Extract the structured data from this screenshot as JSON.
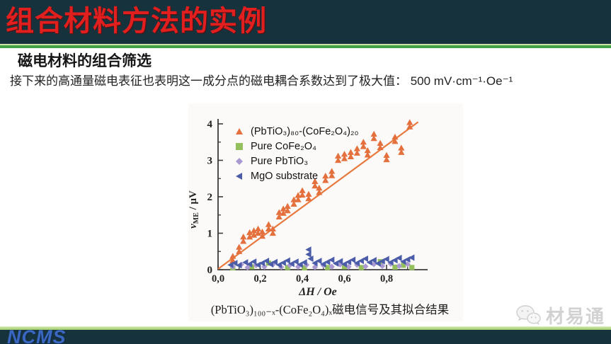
{
  "header": {
    "title": "组合材料方法的实例"
  },
  "subtitle": "磁电材料的组合筛选",
  "body_text": "接下来的高通量磁电表征也表明这一成分点的磁电耦合系数达到了极大值： 500 mV·cm⁻¹·Oe⁻¹",
  "caption": "(PbTiO₃)₁₀₀₋ₓ-(CoFe₂O₄)ₓ磁电信号及其拟合结果",
  "watermark": {
    "icon": "wechat-bubbles-icon",
    "text": "材易通"
  },
  "footer_logo": "NCMS",
  "colors": {
    "title_bar_bg": "#16333d",
    "title_text": "#e11f1f",
    "accent_green": "#42a047",
    "accent_light_green": "#b9dc8e",
    "footer_bar_bg": "#16333d",
    "ncms_blue": "#3a67c2",
    "watermark_gray": "#d2d2d2"
  },
  "chart_data": {
    "type": "scatter",
    "xlabel": "ΔH / Oe",
    "ylabel": {
      "base": "v",
      "sub": "ME",
      "rest": " / μV"
    },
    "xlim": [
      0,
      0.95
    ],
    "ylim": [
      0,
      4
    ],
    "grid": false,
    "legend_position": "top-left",
    "x_ticks": [
      {
        "v": 0.0,
        "label": "0,0"
      },
      {
        "v": 0.2,
        "label": "0,2"
      },
      {
        "v": 0.4,
        "label": "0,4"
      },
      {
        "v": 0.6,
        "label": "0,6"
      },
      {
        "v": 0.8,
        "label": "0,8"
      }
    ],
    "x_minor_ticks": [
      0.1,
      0.3,
      0.5,
      0.7,
      0.9
    ],
    "y_ticks": [
      {
        "v": 0,
        "label": "0"
      },
      {
        "v": 1,
        "label": "1"
      },
      {
        "v": 2,
        "label": "2"
      },
      {
        "v": 3,
        "label": "3"
      },
      {
        "v": 4,
        "label": "4"
      }
    ],
    "y_minor_ticks": [
      0.5,
      1.5,
      2.5,
      3.5
    ],
    "fit_line": {
      "x1": 0.0,
      "y1": 0.02,
      "x2": 0.95,
      "y2": 4.05,
      "color": "#e8793f"
    },
    "series": [
      {
        "name": "(PbTiO₃)₈₀-(CoFe₂O₄)₂₀",
        "marker": "triangle-pair",
        "color": "#e4703d",
        "points": [
          [
            0.07,
            0.25
          ],
          [
            0.1,
            0.5
          ],
          [
            0.12,
            0.78
          ],
          [
            0.15,
            0.9
          ],
          [
            0.17,
            0.95
          ],
          [
            0.19,
            1.0
          ],
          [
            0.21,
            0.92
          ],
          [
            0.24,
            1.12
          ],
          [
            0.26,
            1.0
          ],
          [
            0.29,
            1.45
          ],
          [
            0.31,
            1.55
          ],
          [
            0.33,
            1.62
          ],
          [
            0.36,
            1.8
          ],
          [
            0.38,
            1.92
          ],
          [
            0.4,
            2.05
          ],
          [
            0.43,
            1.95
          ],
          [
            0.46,
            2.3
          ],
          [
            0.48,
            2.12
          ],
          [
            0.51,
            2.45
          ],
          [
            0.54,
            2.58
          ],
          [
            0.57,
            3.0
          ],
          [
            0.6,
            3.05
          ],
          [
            0.63,
            3.1
          ],
          [
            0.66,
            3.2
          ],
          [
            0.69,
            3.38
          ],
          [
            0.71,
            3.15
          ],
          [
            0.74,
            3.6
          ],
          [
            0.77,
            3.35
          ],
          [
            0.8,
            3.02
          ],
          [
            0.84,
            3.52
          ],
          [
            0.87,
            3.22
          ],
          [
            0.91,
            3.92
          ]
        ]
      },
      {
        "name": "Pure CoFe₂O₄",
        "marker": "square",
        "color": "#93c05c",
        "points": [
          [
            0.07,
            0.05
          ],
          [
            0.16,
            0.08
          ],
          [
            0.24,
            0.18
          ],
          [
            0.33,
            0.06
          ],
          [
            0.41,
            0.05
          ],
          [
            0.52,
            0.06
          ],
          [
            0.6,
            0.08
          ],
          [
            0.68,
            0.06
          ],
          [
            0.77,
            0.22
          ],
          [
            0.84,
            0.07
          ],
          [
            0.88,
            0.12
          ],
          [
            0.92,
            0.06
          ]
        ]
      },
      {
        "name": "Pure PbTiO₃",
        "marker": "diamond",
        "color": "#ab99d2",
        "points": [
          [
            0.07,
            0.08
          ],
          [
            0.11,
            0.14
          ],
          [
            0.14,
            0.06
          ],
          [
            0.18,
            0.12
          ],
          [
            0.22,
            0.08
          ],
          [
            0.26,
            0.14
          ],
          [
            0.3,
            0.07
          ],
          [
            0.34,
            0.12
          ],
          [
            0.38,
            0.08
          ],
          [
            0.42,
            0.13
          ],
          [
            0.46,
            0.07
          ],
          [
            0.5,
            0.12
          ],
          [
            0.54,
            0.08
          ],
          [
            0.58,
            0.14
          ],
          [
            0.62,
            0.08
          ],
          [
            0.66,
            0.13
          ],
          [
            0.7,
            0.09
          ],
          [
            0.74,
            0.15
          ],
          [
            0.78,
            0.1
          ],
          [
            0.82,
            0.16
          ],
          [
            0.86,
            0.1
          ],
          [
            0.9,
            0.15
          ]
        ]
      },
      {
        "name": "MgO substrate",
        "marker": "triangle-left",
        "color": "#4b5ca8",
        "points": [
          [
            0.06,
            0.13
          ],
          [
            0.08,
            0.18
          ],
          [
            0.1,
            0.12
          ],
          [
            0.13,
            0.2
          ],
          [
            0.15,
            0.15
          ],
          [
            0.17,
            0.22
          ],
          [
            0.19,
            0.13
          ],
          [
            0.21,
            0.18
          ],
          [
            0.23,
            0.24
          ],
          [
            0.25,
            0.15
          ],
          [
            0.27,
            0.21
          ],
          [
            0.29,
            0.13
          ],
          [
            0.31,
            0.19
          ],
          [
            0.33,
            0.25
          ],
          [
            0.35,
            0.16
          ],
          [
            0.37,
            0.22
          ],
          [
            0.39,
            0.14
          ],
          [
            0.41,
            0.2
          ],
          [
            0.43,
            0.55
          ],
          [
            0.43,
            0.42
          ],
          [
            0.44,
            0.3
          ],
          [
            0.46,
            0.18
          ],
          [
            0.48,
            0.24
          ],
          [
            0.5,
            0.15
          ],
          [
            0.52,
            0.21
          ],
          [
            0.54,
            0.27
          ],
          [
            0.56,
            0.17
          ],
          [
            0.58,
            0.23
          ],
          [
            0.6,
            0.15
          ],
          [
            0.62,
            0.21
          ],
          [
            0.64,
            0.27
          ],
          [
            0.66,
            0.18
          ],
          [
            0.68,
            0.24
          ],
          [
            0.7,
            0.3
          ],
          [
            0.72,
            0.2
          ],
          [
            0.74,
            0.26
          ],
          [
            0.76,
            0.17
          ],
          [
            0.78,
            0.23
          ],
          [
            0.8,
            0.29
          ],
          [
            0.82,
            0.2
          ],
          [
            0.84,
            0.26
          ],
          [
            0.86,
            0.32
          ],
          [
            0.88,
            0.22
          ],
          [
            0.9,
            0.28
          ],
          [
            0.92,
            0.33
          ]
        ]
      }
    ]
  }
}
